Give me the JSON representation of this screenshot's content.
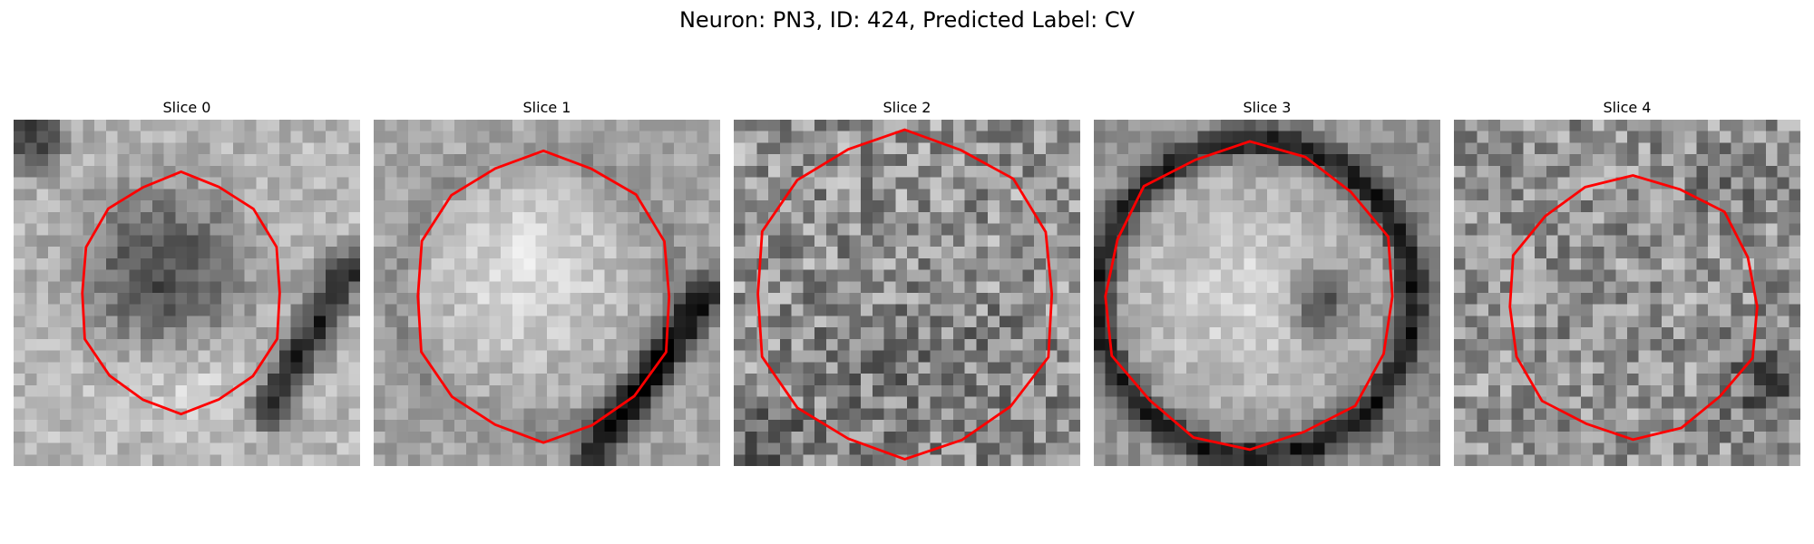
{
  "figure": {
    "title": "Neuron: PN3, ID: 424, Predicted Label: CV"
  },
  "slices": [
    {
      "title": "Slice 0"
    },
    {
      "title": "Slice 1"
    },
    {
      "title": "Slice 2"
    },
    {
      "title": "Slice 3"
    },
    {
      "title": "Slice 4"
    }
  ],
  "colors": {
    "contour": "#ff0000",
    "colormap": "grayscale"
  }
}
